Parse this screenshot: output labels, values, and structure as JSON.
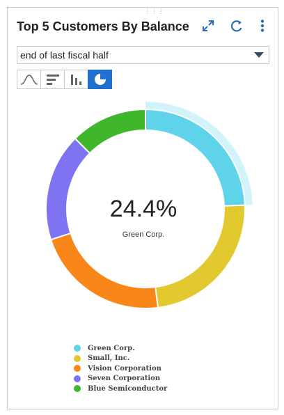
{
  "widget": {
    "title": "Top 5 Customers By Balance",
    "header_icons": [
      "expand-icon",
      "refresh-icon",
      "more-vertical-icon"
    ],
    "period_select": {
      "value": "end of last fiscal half"
    },
    "view_buttons": [
      {
        "name": "line-chart-view",
        "icon": "line-chart-icon",
        "active": false
      },
      {
        "name": "bar-chart-view",
        "icon": "horizontal-bar-icon",
        "active": false
      },
      {
        "name": "column-chart-view",
        "icon": "column-chart-icon",
        "active": false
      },
      {
        "name": "pie-chart-view",
        "icon": "donut-chart-icon",
        "active": true
      }
    ]
  },
  "chart_data": {
    "type": "pie",
    "style": "donut",
    "categories": [
      "Green Corp.",
      "Small, Inc.",
      "Vision Corporation",
      "Seven Corporation",
      "Blue Semiconductor"
    ],
    "values": [
      24.4,
      23.6,
      22.0,
      17.5,
      12.5
    ],
    "colors": [
      "#5ed3ea",
      "#e2c930",
      "#f98618",
      "#7f73f2",
      "#3fb62c"
    ],
    "selected": {
      "category": "Green Corp.",
      "value_label": "24.4%"
    },
    "legend_position": "bottom"
  }
}
